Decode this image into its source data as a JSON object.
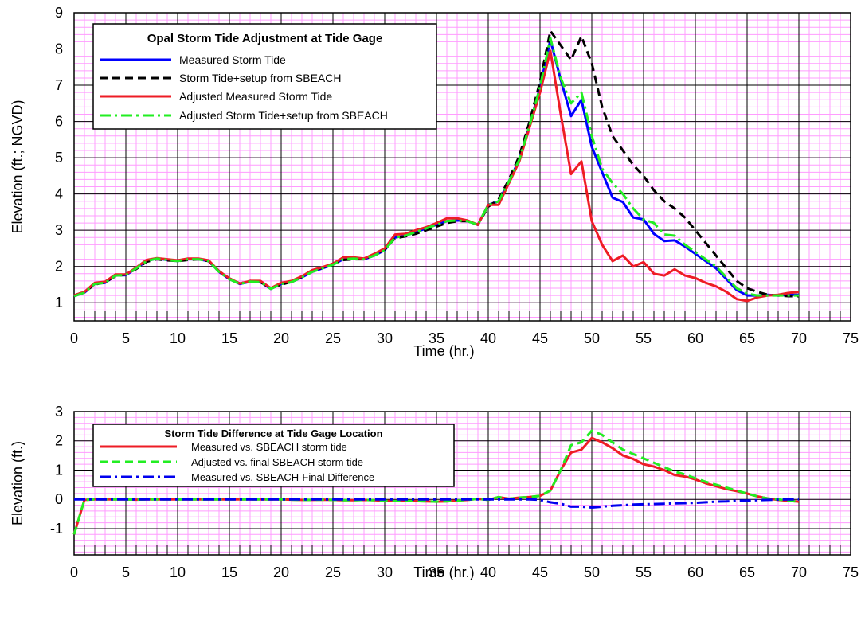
{
  "chart_data": [
    {
      "type": "line",
      "legend_title": "Opal Storm Tide Adjustment at Tide Gage",
      "xlabel": "Time (hr.)",
      "ylabel": "Elevation (ft.; NGVD)",
      "x": [
        0,
        1,
        2,
        3,
        4,
        5,
        6,
        7,
        8,
        9,
        10,
        11,
        12,
        13,
        14,
        15,
        16,
        17,
        18,
        19,
        20,
        21,
        22,
        23,
        24,
        25,
        26,
        27,
        28,
        29,
        30,
        31,
        32,
        33,
        34,
        35,
        36,
        37,
        38,
        39,
        40,
        41,
        42,
        43,
        44,
        45,
        46,
        47,
        48,
        49,
        50,
        51,
        52,
        53,
        54,
        55,
        56,
        57,
        58,
        59,
        60,
        61,
        62,
        63,
        64,
        65,
        66,
        67,
        68,
        69,
        70
      ],
      "xlim": [
        0,
        75
      ],
      "xticks": [
        0,
        5,
        10,
        15,
        20,
        25,
        30,
        35,
        40,
        45,
        50,
        55,
        60,
        65,
        70,
        75
      ],
      "ylim": [
        0.5,
        9
      ],
      "yticks": [
        1,
        2,
        3,
        4,
        5,
        6,
        7,
        8,
        9
      ],
      "grid": true,
      "legend": "upper left",
      "series": [
        {
          "name": "Measured Storm Tide",
          "color": "#0000ff",
          "linestyle": "solid",
          "values": [
            1.18,
            1.28,
            1.52,
            1.55,
            1.75,
            1.76,
            1.95,
            2.15,
            2.22,
            2.18,
            2.15,
            2.2,
            2.2,
            2.15,
            1.85,
            1.65,
            1.52,
            1.58,
            1.57,
            1.38,
            1.52,
            1.57,
            1.7,
            1.85,
            1.95,
            2.05,
            2.2,
            2.22,
            2.2,
            2.3,
            2.45,
            2.8,
            2.85,
            2.95,
            3.05,
            3.15,
            3.25,
            3.27,
            3.25,
            3.15,
            3.7,
            3.8,
            4.35,
            4.95,
            5.9,
            6.95,
            8.25,
            7.15,
            6.15,
            6.6,
            5.3,
            4.6,
            3.9,
            3.78,
            3.35,
            3.3,
            2.9,
            2.7,
            2.72,
            2.55,
            2.35,
            2.15,
            1.95,
            1.65,
            1.35,
            1.2,
            1.2,
            1.22,
            1.2,
            1.22,
            1.22
          ]
        },
        {
          "name": "Storm Tide+setup from SBEACH",
          "color": "#000000",
          "linestyle": "dashed",
          "values": [
            1.2,
            1.3,
            1.5,
            1.57,
            1.73,
            1.78,
            1.93,
            2.13,
            2.2,
            2.17,
            2.15,
            2.18,
            2.2,
            2.15,
            1.87,
            1.67,
            1.53,
            1.6,
            1.57,
            1.4,
            1.5,
            1.58,
            1.72,
            1.88,
            1.97,
            2.08,
            2.18,
            2.2,
            2.2,
            2.32,
            2.47,
            2.78,
            2.83,
            2.9,
            3.0,
            3.1,
            3.2,
            3.25,
            3.25,
            3.15,
            3.65,
            3.85,
            4.4,
            5.05,
            6.0,
            7.1,
            8.5,
            8.1,
            7.7,
            8.35,
            7.6,
            6.4,
            5.6,
            5.2,
            4.8,
            4.5,
            4.1,
            3.8,
            3.6,
            3.35,
            3.0,
            2.65,
            2.3,
            1.95,
            1.6,
            1.4,
            1.3,
            1.22,
            1.2,
            1.18,
            1.18
          ]
        },
        {
          "name": "Adjusted Measured Storm Tide",
          "color": "#ee1c25",
          "linestyle": "solid",
          "values": [
            1.2,
            1.3,
            1.55,
            1.58,
            1.78,
            1.78,
            1.97,
            2.18,
            2.23,
            2.2,
            2.17,
            2.22,
            2.22,
            2.17,
            1.87,
            1.67,
            1.53,
            1.6,
            1.6,
            1.4,
            1.55,
            1.6,
            1.73,
            1.9,
            1.98,
            2.08,
            2.25,
            2.25,
            2.22,
            2.35,
            2.5,
            2.88,
            2.9,
            3.0,
            3.08,
            3.2,
            3.33,
            3.33,
            3.27,
            3.15,
            3.7,
            3.7,
            4.3,
            4.9,
            5.85,
            6.8,
            7.95,
            6.2,
            4.55,
            4.9,
            3.25,
            2.6,
            2.15,
            2.3,
            2.0,
            2.12,
            1.8,
            1.75,
            1.92,
            1.75,
            1.68,
            1.55,
            1.45,
            1.3,
            1.1,
            1.05,
            1.15,
            1.2,
            1.22,
            1.27,
            1.3
          ]
        },
        {
          "name": "Adjusted Storm Tide+setup from SBEACH",
          "color": "#22ee22",
          "linestyle": "dashdot",
          "values": [
            1.18,
            1.28,
            1.52,
            1.55,
            1.75,
            1.76,
            1.95,
            2.15,
            2.22,
            2.18,
            2.15,
            2.2,
            2.2,
            2.15,
            1.85,
            1.65,
            1.52,
            1.58,
            1.57,
            1.38,
            1.52,
            1.57,
            1.7,
            1.85,
            1.95,
            2.05,
            2.2,
            2.22,
            2.2,
            2.3,
            2.45,
            2.8,
            2.85,
            2.95,
            3.05,
            3.15,
            3.25,
            3.27,
            3.25,
            3.15,
            3.7,
            3.8,
            4.35,
            4.95,
            5.9,
            6.95,
            8.3,
            7.2,
            6.5,
            6.8,
            5.6,
            4.7,
            4.3,
            4.0,
            3.6,
            3.3,
            3.2,
            2.88,
            2.85,
            2.6,
            2.4,
            2.2,
            2.0,
            1.7,
            1.4,
            1.25,
            1.2,
            1.2,
            1.2,
            1.2,
            1.2
          ]
        }
      ]
    },
    {
      "type": "line",
      "legend_title": "Storm Tide Difference at Tide Gage Location",
      "xlabel": "Time (hr.)",
      "ylabel": "Elevation (ft.)",
      "x": [
        0,
        1,
        2,
        3,
        4,
        5,
        6,
        7,
        8,
        9,
        10,
        11,
        12,
        13,
        14,
        15,
        16,
        17,
        18,
        19,
        20,
        21,
        22,
        23,
        24,
        25,
        26,
        27,
        28,
        29,
        30,
        31,
        32,
        33,
        34,
        35,
        36,
        37,
        38,
        39,
        40,
        41,
        42,
        43,
        44,
        45,
        46,
        47,
        48,
        49,
        50,
        51,
        52,
        53,
        54,
        55,
        56,
        57,
        58,
        59,
        60,
        61,
        62,
        63,
        64,
        65,
        66,
        67,
        68,
        69,
        70
      ],
      "xlim": [
        0,
        75
      ],
      "xticks": [
        0,
        5,
        10,
        15,
        20,
        25,
        30,
        35,
        40,
        45,
        50,
        55,
        60,
        65,
        70,
        75
      ],
      "ylim": [
        -1.9,
        3
      ],
      "yticks": [
        -1,
        0,
        1,
        2,
        3
      ],
      "grid": true,
      "legend": "upper left",
      "series": [
        {
          "name": "Measured vs. SBEACH storm tide",
          "color": "#ee1c25",
          "linestyle": "solid",
          "values": [
            -1.2,
            -0.02,
            0,
            0,
            0,
            0,
            -0.01,
            0,
            0,
            0,
            0,
            0,
            0,
            0,
            0,
            0,
            0,
            0,
            0,
            0,
            0,
            -0.01,
            -0.02,
            -0.02,
            -0.01,
            -0.02,
            -0.03,
            -0.03,
            -0.02,
            -0.03,
            -0.05,
            -0.06,
            -0.05,
            -0.06,
            -0.07,
            -0.08,
            -0.07,
            -0.04,
            -0.02,
            0.02,
            -0.02,
            0.08,
            0.02,
            0.06,
            0.08,
            0.12,
            0.3,
            1.0,
            1.6,
            1.7,
            2.1,
            1.95,
            1.75,
            1.5,
            1.38,
            1.2,
            1.12,
            1.0,
            0.83,
            0.78,
            0.68,
            0.55,
            0.45,
            0.35,
            0.28,
            0.2,
            0.1,
            0.03,
            -0.02,
            -0.05,
            -0.08
          ]
        },
        {
          "name": "Adjusted vs. final SBEACH storm tide",
          "color": "#22ee22",
          "linestyle": "dashed",
          "values": [
            -1.2,
            -0.02,
            0,
            0,
            0,
            0,
            -0.01,
            0,
            0,
            0,
            0,
            0,
            0,
            0,
            0,
            0,
            0,
            0,
            0,
            0,
            0,
            -0.01,
            -0.02,
            -0.02,
            -0.01,
            -0.02,
            -0.03,
            -0.03,
            -0.02,
            -0.03,
            -0.05,
            -0.06,
            -0.05,
            -0.06,
            -0.07,
            -0.08,
            -0.07,
            -0.04,
            -0.02,
            0.02,
            -0.02,
            0.08,
            0.02,
            0.06,
            0.08,
            0.12,
            0.3,
            1.0,
            1.85,
            1.95,
            2.35,
            2.2,
            1.95,
            1.7,
            1.55,
            1.4,
            1.25,
            1.1,
            0.95,
            0.85,
            0.72,
            0.6,
            0.5,
            0.4,
            0.3,
            0.2,
            0.1,
            0.03,
            0,
            -0.05,
            -0.08
          ]
        },
        {
          "name": "Measured vs. SBEACH-Final Difference",
          "color": "#0000ee",
          "linestyle": "dashdot",
          "values": [
            0,
            0,
            0,
            0,
            0,
            0,
            0,
            0,
            0,
            0,
            0,
            0,
            0,
            0,
            0,
            0,
            0,
            0,
            0,
            0,
            0,
            0,
            0,
            0,
            0,
            0,
            0,
            0,
            0,
            0,
            0,
            0,
            0,
            0,
            0,
            0,
            0,
            0,
            0,
            0,
            0,
            0,
            0,
            0,
            0,
            -0.02,
            -0.1,
            -0.15,
            -0.25,
            -0.25,
            -0.28,
            -0.25,
            -0.22,
            -0.2,
            -0.18,
            -0.17,
            -0.16,
            -0.15,
            -0.14,
            -0.13,
            -0.12,
            -0.1,
            -0.08,
            -0.07,
            -0.05,
            -0.04,
            -0.03,
            -0.02,
            -0.01,
            0,
            0
          ]
        }
      ]
    }
  ]
}
